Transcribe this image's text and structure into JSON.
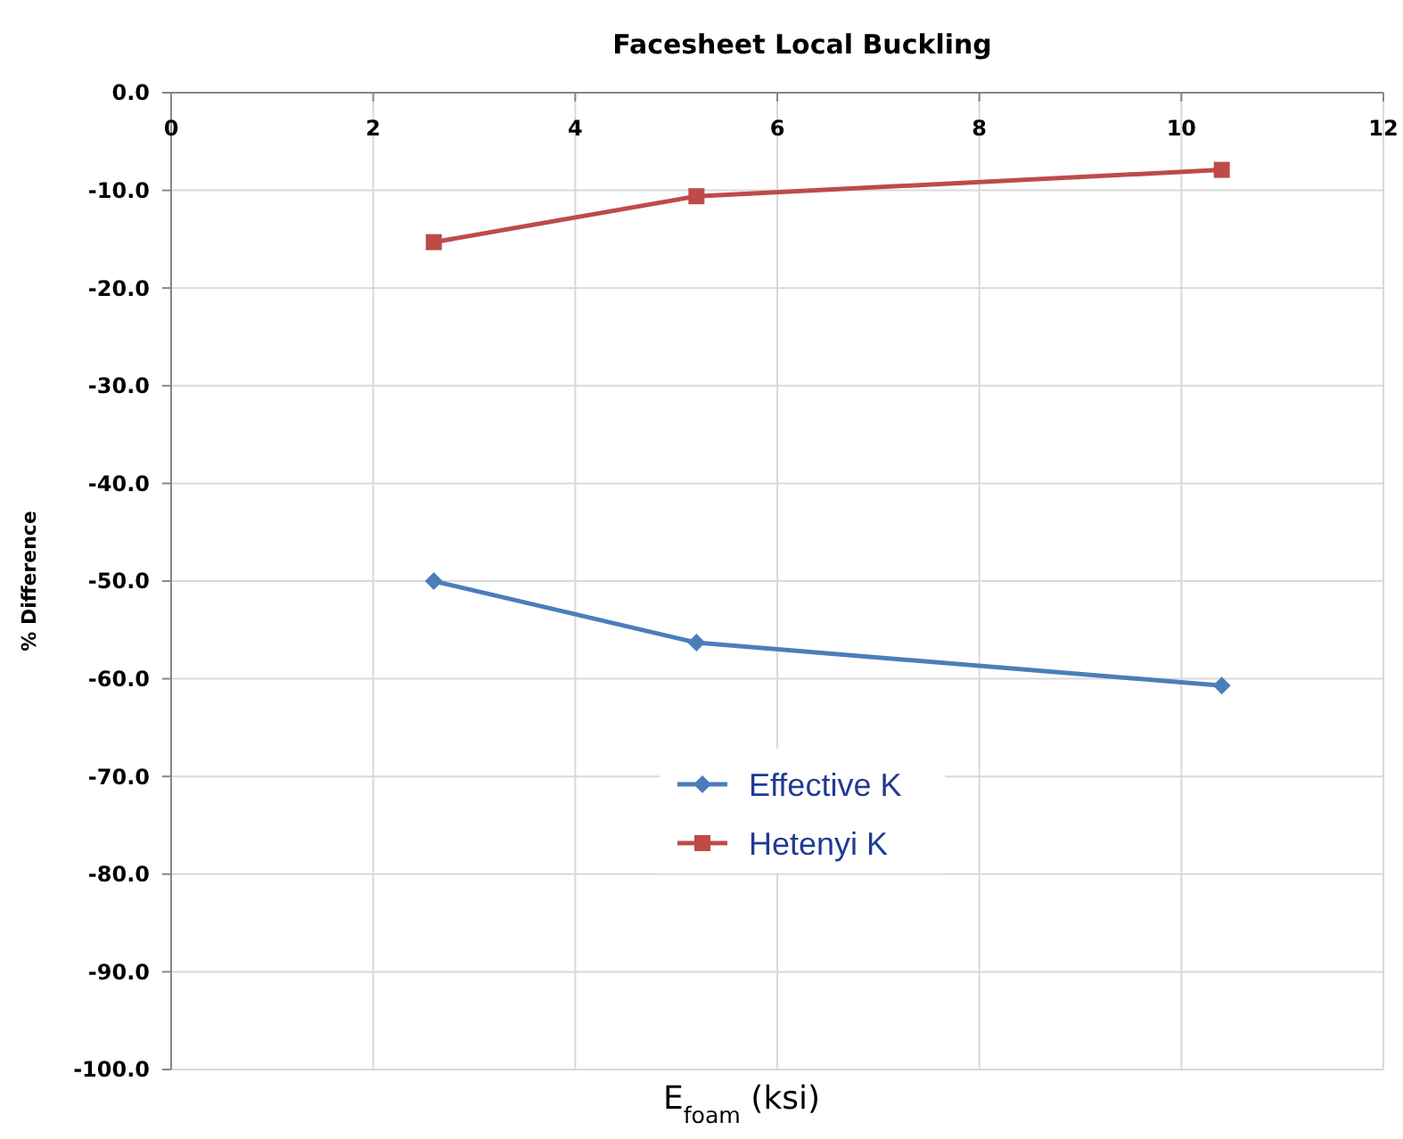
{
  "chart_data": {
    "type": "line",
    "title": "Facesheet Local Buckling",
    "xlabel": "E$_{foam}$ (ksi)",
    "ylabel": "% Difference",
    "xlim": [
      0,
      12
    ],
    "xticks": [
      0,
      2,
      4,
      6,
      8,
      10,
      12
    ],
    "ylim": [
      -100,
      0
    ],
    "yticks": [
      {
        "value": -100,
        "label": "-100.0"
      },
      {
        "value": -90,
        "label": "-90.0"
      },
      {
        "value": -80,
        "label": "-80.0"
      },
      {
        "value": -70,
        "label": "-70.0"
      },
      {
        "value": -60,
        "label": "-60.0"
      },
      {
        "value": -50,
        "label": "-50.0"
      },
      {
        "value": -40,
        "label": "-40.0"
      },
      {
        "value": -30,
        "label": "-30.0"
      },
      {
        "value": -20,
        "label": "-20.0"
      },
      {
        "value": -10,
        "label": "-10.0"
      },
      {
        "value": 0,
        "label": "0.0"
      }
    ],
    "grid": true,
    "legend": "bottom",
    "line_style": "solid",
    "series": [
      {
        "name": "Effective K",
        "color": "#4a7ebb",
        "marker": "diamond",
        "x": [
          2.6,
          5.2,
          10.4
        ],
        "values": [
          -50.0,
          -56.3,
          -60.7
        ]
      },
      {
        "name": "Hetenyi K",
        "color": "#be4b48",
        "marker": "square",
        "x": [
          2.6,
          5.2,
          10.4
        ],
        "values": [
          -15.3,
          -10.6,
          -7.9
        ]
      }
    ]
  }
}
